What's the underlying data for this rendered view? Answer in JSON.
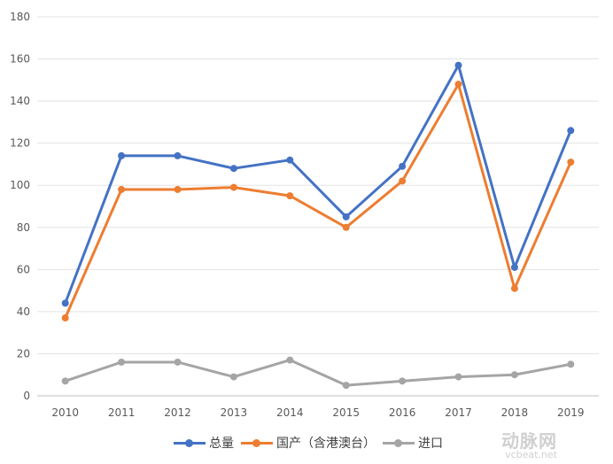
{
  "chart_data": {
    "type": "line",
    "title": "",
    "xlabel": "",
    "ylabel": "",
    "categories": [
      "2010",
      "2011",
      "2012",
      "2013",
      "2014",
      "2015",
      "2016",
      "2017",
      "2018",
      "2019"
    ],
    "ylim": [
      0,
      180
    ],
    "yticks": [
      0,
      20,
      40,
      60,
      80,
      100,
      120,
      140,
      160,
      180
    ],
    "grid": true,
    "legend_position": "bottom",
    "series": [
      {
        "name": "总量",
        "color": "#4472C4",
        "values": [
          44,
          114,
          114,
          108,
          112,
          85,
          109,
          157,
          61,
          126
        ]
      },
      {
        "name": "国产（含港澳台）",
        "color": "#ED7D31",
        "values": [
          37,
          98,
          98,
          99,
          95,
          80,
          102,
          148,
          51,
          111
        ]
      },
      {
        "name": "进口",
        "color": "#A5A5A5",
        "values": [
          7,
          16,
          16,
          9,
          17,
          5,
          7,
          9,
          10,
          15
        ]
      }
    ]
  },
  "watermark": {
    "cn": "动脉网",
    "en": "vcbeat.net"
  }
}
